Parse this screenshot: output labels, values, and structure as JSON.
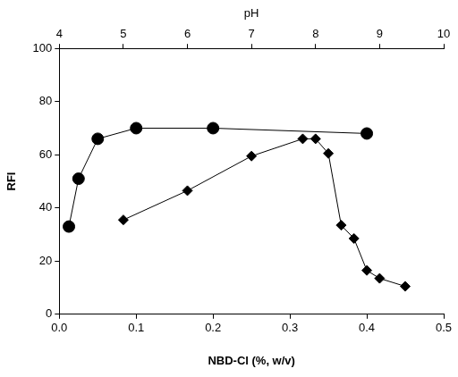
{
  "chart_data": {
    "type": "scatter",
    "x_label": "NBD-Cl (%, w/v)",
    "x2_label": "pH",
    "y_label": "RFI",
    "xlim": [
      0,
      0.5
    ],
    "xticks": [
      {
        "value": 0,
        "label": "0.0"
      },
      {
        "value": 0.1,
        "label": "0.1"
      },
      {
        "value": 0.2,
        "label": "0.2"
      },
      {
        "value": 0.3,
        "label": "0.3"
      },
      {
        "value": 0.4,
        "label": "0.4"
      },
      {
        "value": 0.5,
        "label": "0.5"
      }
    ],
    "x2lim": [
      4,
      10
    ],
    "x2ticks": [
      4,
      5,
      6,
      7,
      8,
      9,
      10
    ],
    "ylim": [
      0,
      100
    ],
    "yticks": [
      0,
      20,
      40,
      60,
      80,
      100
    ],
    "grid": false,
    "series": [
      {
        "marker": "circle",
        "color": "#000000",
        "x": [
          0.0125,
          0.025,
          0.05,
          0.1,
          0.2,
          0.4
        ],
        "values": [
          33,
          51,
          66,
          70,
          70,
          68
        ]
      },
      {
        "marker": "diamond",
        "color": "#000000",
        "axis": "x2",
        "x": [
          5,
          6,
          7,
          7.8,
          8,
          8.2,
          8.4,
          8.6,
          8.8,
          9,
          9.4
        ],
        "values": [
          35.5,
          46.5,
          59.5,
          66,
          66,
          60.5,
          33.5,
          28.5,
          16.5,
          13.5,
          10.5
        ]
      }
    ]
  }
}
